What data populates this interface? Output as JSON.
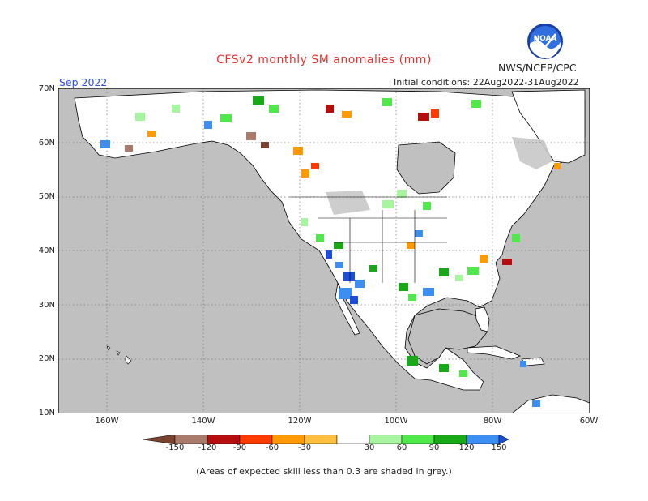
{
  "title": "CFSv2 monthly SM anomalies (mm)",
  "month": "Sep 2022",
  "agency": "NWS/NCEP/CPC",
  "logo_text": "NOAA",
  "initial_conditions": "Initial conditions: 22Aug2022-31Aug2022",
  "lat_labels": [
    "70N",
    "60N",
    "50N",
    "40N",
    "30N",
    "20N",
    "10N"
  ],
  "lon_labels": [
    "160W",
    "140W",
    "120W",
    "100W",
    "80W",
    "60W"
  ],
  "colorbar": {
    "labels": [
      "-150",
      "-120",
      "-90",
      "-60",
      "-30",
      "30",
      "60",
      "90",
      "120",
      "150"
    ],
    "colors": [
      "#7a4330",
      "#a87b6c",
      "#b50e0e",
      "#ff3a00",
      "#ff9a00",
      "#ffbf40",
      "#ffffff",
      "#a8f5a0",
      "#50e84a",
      "#18a818",
      "#3c8ff0",
      "#1d4ed8"
    ]
  },
  "footnote": "(Areas of expected skill less than 0.3 are shaded in grey.)",
  "colors": {
    "ocean": "#c0c0c0",
    "land": "#ffffff",
    "skill_grey": "#c8c8c8"
  }
}
